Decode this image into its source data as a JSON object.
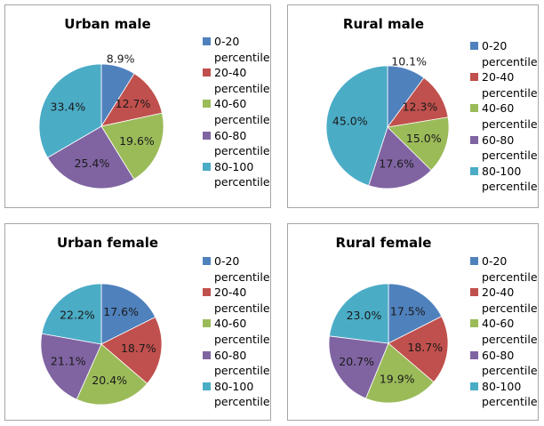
{
  "chart_data": [
    {
      "type": "pie",
      "title": "Urban male",
      "categories": [
        "0-20 percentile",
        "20-40 percentile",
        "40-60 percentile",
        "60-80 percentile",
        "80-100 percentile"
      ],
      "values": [
        8.9,
        12.7,
        19.6,
        25.4,
        33.4
      ],
      "labels": [
        "8.9%",
        "12.7%",
        "19.6%",
        "25.4%",
        "33.4%"
      ],
      "legend": "right"
    },
    {
      "type": "pie",
      "title": "Rural male",
      "categories": [
        "0-20 percentile",
        "20-40 percentile",
        "40-60 percentile",
        "60-80 percentile",
        "80-100 percentile"
      ],
      "values": [
        10.1,
        12.3,
        15.0,
        17.6,
        45.0
      ],
      "labels": [
        "10.1%",
        "12.3%",
        "15.0%",
        "17.6%",
        "45.0%"
      ],
      "legend": "right"
    },
    {
      "type": "pie",
      "title": "Urban female",
      "categories": [
        "0-20 percentile",
        "20-40 percentile",
        "40-60 percentile",
        "60-80 percentile",
        "80-100 percentile"
      ],
      "values": [
        17.6,
        18.7,
        20.4,
        21.1,
        22.2
      ],
      "labels": [
        "17.6%",
        "18.7%",
        "20.4%",
        "21.1%",
        "22.2%"
      ],
      "legend": "right"
    },
    {
      "type": "pie",
      "title": "Rural female",
      "categories": [
        "0-20 percentile",
        "20-40 percentile",
        "40-60 percentile",
        "60-80 percentile",
        "80-100 percentile"
      ],
      "values": [
        17.5,
        18.7,
        19.9,
        20.7,
        23.0
      ],
      "labels": [
        "17.5%",
        "18.7%",
        "19.9%",
        "20.7%",
        "23.0%"
      ],
      "legend": "right"
    }
  ],
  "legend_items": [
    {
      "range": "0-20",
      "suffix": "percentile"
    },
    {
      "range": "20-40",
      "suffix": "percentile"
    },
    {
      "range": "40-60",
      "suffix": "percentile"
    },
    {
      "range": "60-80",
      "suffix": "percentile"
    },
    {
      "range": "80-100",
      "suffix": "percentile"
    }
  ],
  "colors": [
    "#4f81bd",
    "#c0504d",
    "#9bbb59",
    "#8064a2",
    "#4bacc6"
  ]
}
